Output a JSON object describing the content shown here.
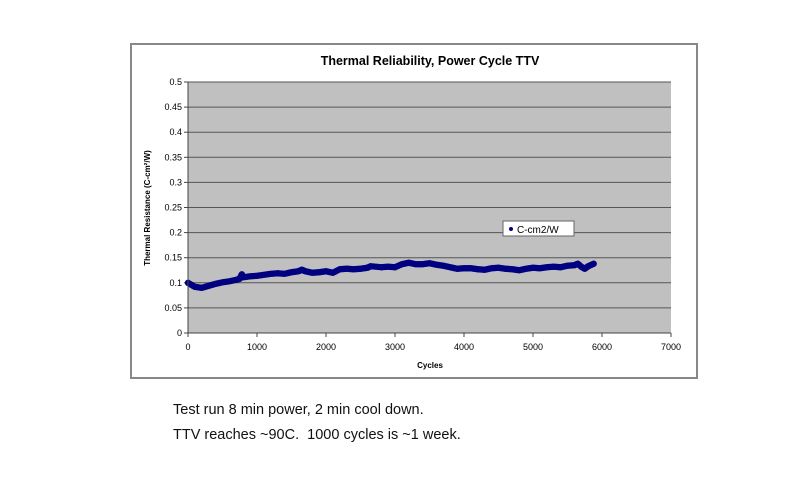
{
  "chart_data": {
    "type": "scatter",
    "title": "Thermal Reliability, Power Cycle TTV",
    "xlabel": "Cycles",
    "ylabel": "Thermal Resistance (C-cm²/W)",
    "xlim": [
      0,
      7000
    ],
    "ylim": [
      0,
      0.5
    ],
    "xticks": [
      "0",
      "1000",
      "2000",
      "3000",
      "4000",
      "5000",
      "6000",
      "7000"
    ],
    "yticks": [
      "0",
      "0.05",
      "0.1",
      "0.15",
      "0.2",
      "0.25",
      "0.3",
      "0.35",
      "0.4",
      "0.45",
      "0.5"
    ],
    "grid": true,
    "legend_position": "center-right",
    "series": [
      {
        "name": "C-cm2/W",
        "color": "#000080",
        "x": [
          0,
          100,
          200,
          300,
          400,
          500,
          600,
          700,
          750,
          780,
          800,
          900,
          1000,
          1100,
          1200,
          1300,
          1400,
          1500,
          1600,
          1650,
          1700,
          1800,
          1900,
          2000,
          2100,
          2200,
          2300,
          2400,
          2500,
          2600,
          2650,
          2800,
          2900,
          3000,
          3100,
          3200,
          3300,
          3400,
          3500,
          3600,
          3700,
          3800,
          3900,
          4000,
          4100,
          4200,
          4300,
          4400,
          4500,
          4600,
          4700,
          4800,
          4900,
          5000,
          5100,
          5200,
          5300,
          5400,
          5500,
          5600,
          5650,
          5700,
          5750,
          5800,
          5880
        ],
        "y": [
          0.1,
          0.092,
          0.09,
          0.094,
          0.098,
          0.101,
          0.103,
          0.106,
          0.108,
          0.117,
          0.111,
          0.113,
          0.114,
          0.116,
          0.118,
          0.119,
          0.118,
          0.121,
          0.123,
          0.126,
          0.123,
          0.12,
          0.121,
          0.123,
          0.12,
          0.127,
          0.128,
          0.127,
          0.128,
          0.13,
          0.133,
          0.131,
          0.132,
          0.131,
          0.137,
          0.14,
          0.137,
          0.137,
          0.139,
          0.136,
          0.134,
          0.131,
          0.128,
          0.129,
          0.129,
          0.127,
          0.126,
          0.129,
          0.13,
          0.128,
          0.127,
          0.125,
          0.128,
          0.13,
          0.129,
          0.131,
          0.132,
          0.131,
          0.134,
          0.135,
          0.138,
          0.132,
          0.128,
          0.133,
          0.138
        ]
      }
    ]
  },
  "captions": {
    "line1": "Test run 8 min power, 2 min cool down.",
    "line2": "TTV reaches ~90C.  1000 cycles is ~1 week."
  }
}
